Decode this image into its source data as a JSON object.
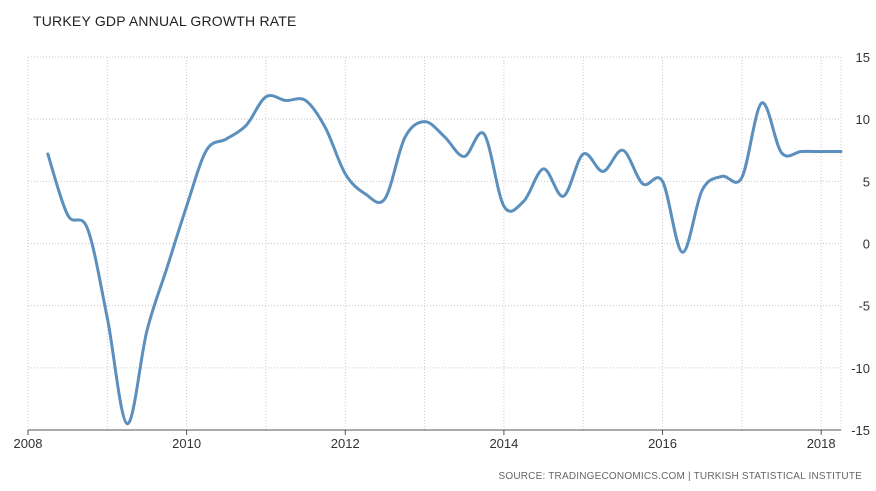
{
  "chart_data": {
    "type": "line",
    "title": "TURKEY GDP ANNUAL GROWTH RATE",
    "source": "SOURCE: TRADINGECONOMICS.COM | TURKISH STATISTICAL INSTITUTE",
    "xlabel": "",
    "ylabel": "",
    "xlim": [
      2008.0,
      2018.25
    ],
    "ylim": [
      -15,
      15
    ],
    "x_ticks": [
      2008,
      2010,
      2012,
      2014,
      2016,
      2018
    ],
    "x_tick_labels": [
      "2008",
      "2010",
      "2012",
      "2014",
      "2016",
      "2018"
    ],
    "y_ticks": [
      15,
      10,
      5,
      0,
      -5,
      -10,
      -15
    ],
    "y_tick_labels": [
      "15",
      "10",
      "5",
      "0",
      "-5",
      "-10",
      "-15"
    ],
    "grid": true,
    "line_color": "#5b8fbd",
    "series": [
      {
        "x": [
          2008.25,
          2008.5,
          2008.75,
          2009.0,
          2009.25,
          2009.5,
          2009.75,
          2010.0,
          2010.25,
          2010.5,
          2010.75,
          2011.0,
          2011.25,
          2011.5,
          2011.75,
          2012.0,
          2012.25,
          2012.5,
          2012.75,
          2013.0,
          2013.25,
          2013.5,
          2013.75,
          2014.0,
          2014.25,
          2014.5,
          2014.75,
          2015.0,
          2015.25,
          2015.5,
          2015.75,
          2016.0,
          2016.25,
          2016.5,
          2016.75,
          2017.0,
          2017.25,
          2017.5,
          2017.75,
          2018.0,
          2018.25
        ],
        "y": [
          7.2,
          2.3,
          1.2,
          -6.0,
          -14.5,
          -7.0,
          -2.0,
          3.0,
          7.5,
          8.4,
          9.5,
          11.8,
          11.5,
          11.5,
          9.3,
          5.6,
          4.0,
          3.6,
          8.5,
          9.8,
          8.6,
          7.0,
          8.8,
          3.0,
          3.4,
          6.0,
          3.8,
          7.2,
          5.8,
          7.5,
          4.8,
          5.0,
          -0.7,
          4.3,
          5.4,
          5.3,
          11.3,
          7.3,
          7.4,
          7.4,
          7.4
        ]
      }
    ]
  }
}
